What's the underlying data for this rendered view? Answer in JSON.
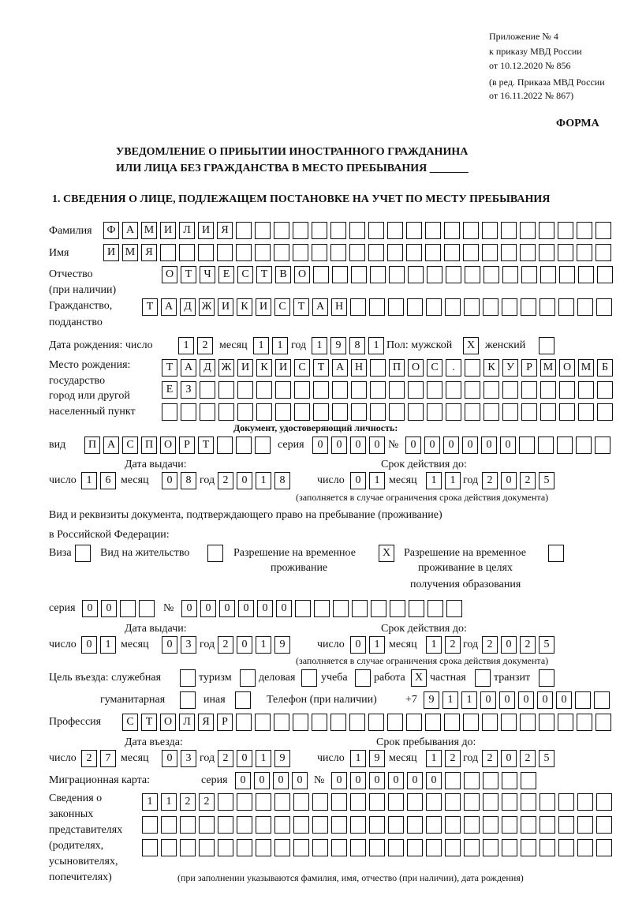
{
  "header": {
    "appendix": "Приложение № 4",
    "order": "к приказу МВД России",
    "order_date": "от 10.12.2020 № 856",
    "edition": "(в ред. Приказа МВД России",
    "edition_date": "от 16.11.2022 № 867)",
    "form": "ФОРМА",
    "title_1": "УВЕДОМЛЕНИЕ О ПРИБЫТИИ ИНОСТРАННОГО ГРАЖДАНИНА",
    "title_2": "ИЛИ ЛИЦА БЕЗ ГРАЖДАНСТВА В МЕСТО ПРЕБЫВАНИЯ _______",
    "section_1": "1. СВЕДЕНИЯ О ЛИЦЕ, ПОДЛЕЖАЩЕМ ПОСТАНОВКЕ НА УЧЕТ ПО МЕСТУ ПРЕБЫВАНИЯ"
  },
  "labels": {
    "surname": "Фамилия",
    "name": "Имя",
    "patronymic": "Отчество",
    "patronymic_note": "(при наличии)",
    "citizenship": "Гражданство,",
    "citizenship_2": "подданство",
    "birth_date": "Дата рождения:  число",
    "month": "месяц",
    "year": "год",
    "day": "число",
    "sex_male": "Пол: мужской",
    "sex_female": "женский",
    "birthplace": "Место рождения:",
    "birthplace_2": "государство",
    "birthplace_3": "город или другой",
    "birthplace_4": "населенный пункт",
    "id_doc": "Документ, удостоверяющий личность:",
    "kind": "вид",
    "series": "серия",
    "number": "№",
    "issue_date": "Дата выдачи:",
    "valid_until": "Срок действия до:",
    "valid_note": "(заполняется в случае ограничения срока действия документа)",
    "residence_doc": "Вид и реквизиты документа, подтверждающего право на пребывание (проживание)",
    "residence_doc_2": "в Российской Федерации:",
    "visa": "Виза",
    "residence_permit": "Вид на жительство",
    "temp_permit": "Разрешение на временное",
    "temp_permit_2": "проживание",
    "temp_permit_edu": "Разрешение на временное",
    "temp_permit_edu_2": "проживание в целях",
    "temp_permit_edu_3": "получения образования",
    "purpose": "Цель въезда: служебная",
    "tourism": "туризм",
    "business": "деловая",
    "study": "учеба",
    "work": "работа",
    "private": "частная",
    "transit": "транзит",
    "humanitarian": "гуманитарная",
    "other": "иная",
    "phone": "Телефон (при наличии)",
    "phone_prefix": "+7",
    "profession": "Профессия",
    "entry_date": "Дата въезда:",
    "stay_until": "Срок пребывания до:",
    "migration_card": "Миграционная карта:",
    "reps_1": "Сведения о",
    "reps_2": "законных",
    "reps_3": "представителях",
    "reps_4": "(родителях,",
    "reps_5": "усыновителях,",
    "reps_6": "попечителях)",
    "reps_note": "(при заполнении указываются фамилия, имя, отчество (при наличии), дата рождения)"
  },
  "fields": {
    "surname": "ФАМИЛИЯ",
    "name": "ИМЯ",
    "patronymic": "ОТЧЕСТВО",
    "citizenship": "ТАДЖИКИСТАН",
    "birth_day": "12",
    "birth_month": "11",
    "birth_year": "1981",
    "sex_male": "X",
    "sex_female": "",
    "birthplace_1": "ТАДЖИКИСТАН ПОС. КУРМОМБ",
    "birthplace_2": "ЕЗ",
    "birthplace_3": "",
    "id_kind": "ПАСПОРТ",
    "id_series": "0000",
    "id_number": "000000",
    "id_issue_day": "16",
    "id_issue_month": "08",
    "id_issue_year": "2018",
    "id_valid_day": "01",
    "id_valid_month": "11",
    "id_valid_year": "2025",
    "visa": "",
    "residence_permit": "",
    "temp_permit": "X",
    "temp_permit_edu": "",
    "rd_series": "00",
    "rd_number": "000000",
    "rd_issue_day": "01",
    "rd_issue_month": "03",
    "rd_issue_year": "2019",
    "rd_valid_day": "01",
    "rd_valid_month": "12",
    "rd_valid_year": "2025",
    "p_official": "",
    "p_tourism": "",
    "p_business": "",
    "p_study": "",
    "p_work": "X",
    "p_private": "",
    "p_transit": "",
    "p_humanitarian": "",
    "p_other": "",
    "phone": "91100000",
    "profession": "СТОЛЯР",
    "entry_day": "27",
    "entry_month": "03",
    "entry_year": "2019",
    "stay_day": "19",
    "stay_month": "12",
    "stay_year": "2025",
    "mc_series": "0000",
    "mc_number": "000000",
    "reps_1": "1122",
    "reps_2": "",
    "reps_3": ""
  }
}
